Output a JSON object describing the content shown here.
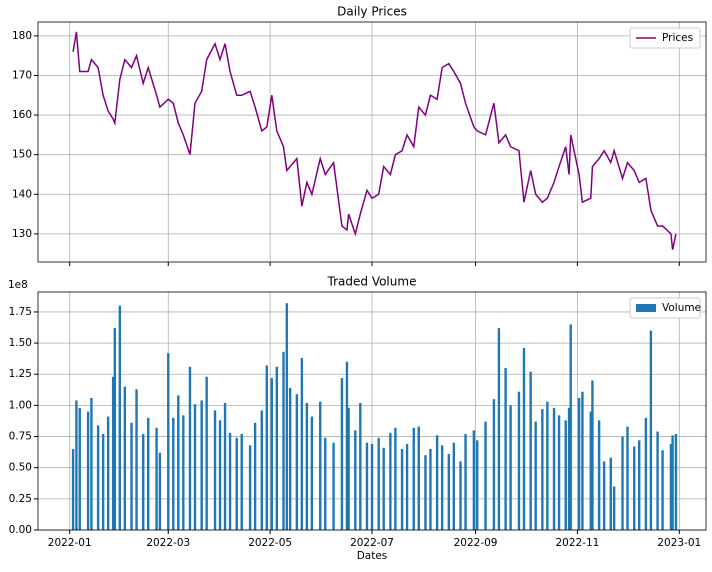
{
  "chart_data": [
    {
      "type": "line",
      "title": "Daily Prices",
      "x": [
        "2022-01-03",
        "2022-01-05",
        "2022-01-07",
        "2022-01-12",
        "2022-01-14",
        "2022-01-18",
        "2022-01-21",
        "2022-01-24",
        "2022-01-27",
        "2022-01-28",
        "2022-01-31",
        "2022-02-03",
        "2022-02-07",
        "2022-02-10",
        "2022-02-14",
        "2022-02-17",
        "2022-02-22",
        "2022-02-24",
        "2022-03-01",
        "2022-03-04",
        "2022-03-07",
        "2022-03-10",
        "2022-03-14",
        "2022-03-17",
        "2022-03-21",
        "2022-03-24",
        "2022-03-29",
        "2022-04-01",
        "2022-04-04",
        "2022-04-07",
        "2022-04-11",
        "2022-04-14",
        "2022-04-19",
        "2022-04-22",
        "2022-04-26",
        "2022-04-29",
        "2022-05-02",
        "2022-05-05",
        "2022-05-09",
        "2022-05-11",
        "2022-05-13",
        "2022-05-17",
        "2022-05-20",
        "2022-05-23",
        "2022-05-26",
        "2022-05-31",
        "2022-06-03",
        "2022-06-08",
        "2022-06-13",
        "2022-06-16",
        "2022-06-17",
        "2022-06-21",
        "2022-06-24",
        "2022-06-28",
        "2022-07-01",
        "2022-07-05",
        "2022-07-08",
        "2022-07-12",
        "2022-07-15",
        "2022-07-19",
        "2022-07-22",
        "2022-07-26",
        "2022-07-29",
        "2022-08-02",
        "2022-08-05",
        "2022-08-09",
        "2022-08-12",
        "2022-08-16",
        "2022-08-19",
        "2022-08-23",
        "2022-08-26",
        "2022-08-31",
        "2022-09-02",
        "2022-09-07",
        "2022-09-12",
        "2022-09-15",
        "2022-09-19",
        "2022-09-22",
        "2022-09-27",
        "2022-09-30",
        "2022-10-04",
        "2022-10-07",
        "2022-10-11",
        "2022-10-14",
        "2022-10-18",
        "2022-10-21",
        "2022-10-25",
        "2022-10-27",
        "2022-10-28",
        "2022-11-02",
        "2022-11-04",
        "2022-11-09",
        "2022-11-10",
        "2022-11-14",
        "2022-11-17",
        "2022-11-21",
        "2022-11-23",
        "2022-11-28",
        "2022-12-01",
        "2022-12-05",
        "2022-12-08",
        "2022-12-12",
        "2022-12-15",
        "2022-12-19",
        "2022-12-22",
        "2022-12-27",
        "2022-12-28",
        "2022-12-30"
      ],
      "series": [
        {
          "name": "Prices",
          "color": "purple",
          "values": [
            176,
            181,
            171,
            171,
            174,
            172,
            165,
            161,
            159,
            158,
            169,
            174,
            172,
            175,
            168,
            172,
            165,
            162,
            164,
            163,
            158,
            155,
            150,
            163,
            166,
            174,
            178,
            174,
            178,
            171,
            165,
            165,
            166,
            162,
            156,
            157,
            165,
            156,
            152,
            146,
            147,
            149,
            137,
            143,
            140,
            149,
            145,
            148,
            132,
            131,
            135,
            130,
            135,
            141,
            139,
            140,
            147,
            145,
            150,
            151,
            155,
            152,
            162,
            160,
            165,
            164,
            172,
            173,
            171,
            168,
            163,
            157,
            156,
            155,
            163,
            153,
            155,
            152,
            151,
            138,
            146,
            140,
            138,
            139,
            143,
            147,
            152,
            145,
            155,
            145,
            138,
            139,
            147,
            149,
            151,
            148,
            151,
            144,
            148,
            146,
            143,
            144,
            136,
            132,
            132,
            130,
            126,
            130
          ]
        }
      ],
      "xlim": [
        "2021-12-13",
        "2023-01-17"
      ],
      "ylim": [
        122.9,
        183.5
      ],
      "yticks": [
        130,
        140,
        150,
        160,
        170,
        180
      ],
      "grid": true,
      "legend": "upper right"
    },
    {
      "type": "bar",
      "title": "Traded Volume",
      "xlabel": "Dates",
      "y_offset_label": "1e8",
      "x": [
        "2022-01-03",
        "2022-01-05",
        "2022-01-07",
        "2022-01-12",
        "2022-01-14",
        "2022-01-18",
        "2022-01-21",
        "2022-01-24",
        "2022-01-27",
        "2022-01-28",
        "2022-01-31",
        "2022-02-03",
        "2022-02-07",
        "2022-02-10",
        "2022-02-14",
        "2022-02-17",
        "2022-02-22",
        "2022-02-24",
        "2022-03-01",
        "2022-03-04",
        "2022-03-07",
        "2022-03-10",
        "2022-03-14",
        "2022-03-17",
        "2022-03-21",
        "2022-03-24",
        "2022-03-29",
        "2022-04-01",
        "2022-04-04",
        "2022-04-07",
        "2022-04-11",
        "2022-04-14",
        "2022-04-19",
        "2022-04-22",
        "2022-04-26",
        "2022-04-29",
        "2022-05-02",
        "2022-05-05",
        "2022-05-09",
        "2022-05-11",
        "2022-05-13",
        "2022-05-17",
        "2022-05-20",
        "2022-05-23",
        "2022-05-26",
        "2022-05-31",
        "2022-06-03",
        "2022-06-08",
        "2022-06-13",
        "2022-06-16",
        "2022-06-17",
        "2022-06-21",
        "2022-06-24",
        "2022-06-28",
        "2022-07-01",
        "2022-07-05",
        "2022-07-08",
        "2022-07-12",
        "2022-07-15",
        "2022-07-19",
        "2022-07-22",
        "2022-07-26",
        "2022-07-29",
        "2022-08-02",
        "2022-08-05",
        "2022-08-09",
        "2022-08-12",
        "2022-08-16",
        "2022-08-19",
        "2022-08-23",
        "2022-08-26",
        "2022-08-31",
        "2022-09-02",
        "2022-09-07",
        "2022-09-12",
        "2022-09-15",
        "2022-09-19",
        "2022-09-22",
        "2022-09-27",
        "2022-09-30",
        "2022-10-04",
        "2022-10-07",
        "2022-10-11",
        "2022-10-14",
        "2022-10-18",
        "2022-10-21",
        "2022-10-25",
        "2022-10-27",
        "2022-10-28",
        "2022-11-02",
        "2022-11-04",
        "2022-11-09",
        "2022-11-10",
        "2022-11-14",
        "2022-11-17",
        "2022-11-21",
        "2022-11-23",
        "2022-11-28",
        "2022-12-01",
        "2022-12-05",
        "2022-12-08",
        "2022-12-12",
        "2022-12-15",
        "2022-12-19",
        "2022-12-22",
        "2022-12-27",
        "2022-12-28",
        "2022-12-30"
      ],
      "series": [
        {
          "name": "Volume",
          "color": "#1f77b4",
          "values": [
            0.65,
            1.04,
            0.98,
            0.95,
            1.06,
            0.84,
            0.77,
            0.91,
            1.23,
            1.62,
            1.8,
            1.15,
            0.86,
            1.13,
            0.77,
            0.9,
            0.82,
            0.62,
            1.42,
            0.9,
            1.08,
            0.92,
            1.31,
            1.01,
            1.04,
            1.23,
            0.96,
            0.88,
            1.02,
            0.78,
            0.74,
            0.77,
            0.68,
            0.86,
            0.96,
            1.32,
            1.22,
            1.31,
            1.43,
            1.82,
            1.14,
            1.09,
            1.38,
            1.02,
            0.91,
            1.03,
            0.74,
            0.7,
            1.22,
            1.35,
            0.98,
            0.8,
            1.02,
            0.7,
            0.69,
            0.74,
            0.66,
            0.78,
            0.82,
            0.65,
            0.69,
            0.82,
            0.83,
            0.6,
            0.65,
            0.76,
            0.68,
            0.61,
            0.7,
            0.55,
            0.77,
            0.8,
            0.72,
            0.87,
            1.05,
            1.62,
            1.3,
            1.0,
            1.11,
            1.46,
            1.27,
            0.87,
            0.97,
            1.03,
            0.98,
            0.92,
            0.88,
            0.98,
            1.65,
            1.06,
            1.11,
            0.95,
            1.2,
            0.88,
            0.55,
            0.58,
            0.35,
            0.75,
            0.83,
            0.67,
            0.72,
            0.9,
            1.6,
            0.79,
            0.64,
            0.69,
            0.76,
            0.77
          ]
        }
      ],
      "xlim": [
        "2021-12-13",
        "2023-01-17"
      ],
      "xticks": [
        {
          "value": "2022-01-01",
          "label": "2022-01"
        },
        {
          "value": "2022-03-01",
          "label": "2022-03"
        },
        {
          "value": "2022-05-01",
          "label": "2022-05"
        },
        {
          "value": "2022-07-01",
          "label": "2022-07"
        },
        {
          "value": "2022-09-01",
          "label": "2022-09"
        },
        {
          "value": "2022-11-01",
          "label": "2022-11"
        },
        {
          "value": "2023-01-01",
          "label": "2023-01"
        }
      ],
      "ylim": [
        0,
        1.91
      ],
      "yticks": [
        {
          "value": 0,
          "label": "0.00"
        },
        0.25,
        {
          "value": 0.5,
          "label": "0.50"
        },
        0.75,
        {
          "value": 1,
          "label": "1.00"
        },
        1.25,
        {
          "value": 1.5,
          "label": "1.50"
        },
        1.75
      ],
      "grid": true,
      "legend": "upper right"
    }
  ]
}
